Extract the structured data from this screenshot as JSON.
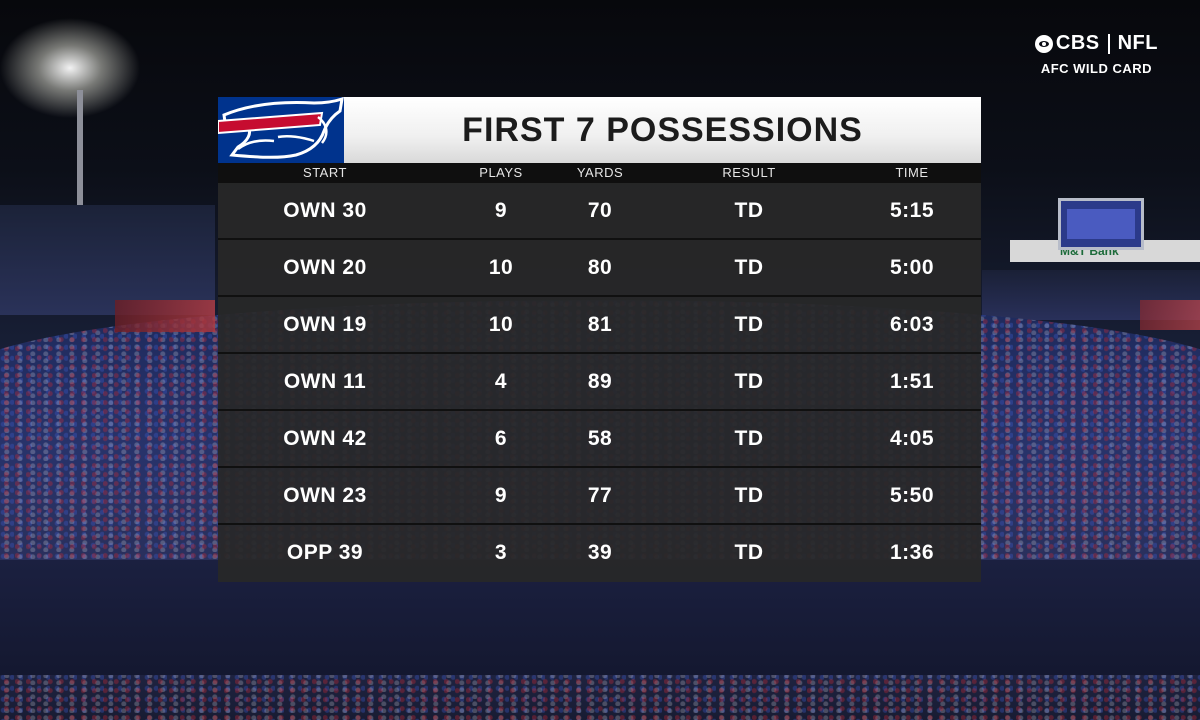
{
  "broadcast": {
    "network": "CBS",
    "league": "NFL",
    "game": "AFC WILD CARD"
  },
  "banner": {
    "sponsor": "M&T Bank"
  },
  "graphic": {
    "title": "FIRST 7 POSSESSIONS",
    "team_logo": "buffalo-bills-logo",
    "colors": {
      "team_blue": "#00338d",
      "team_red": "#c60c30"
    },
    "columns": {
      "start": "START",
      "plays": "PLAYS",
      "yards": "YARDS",
      "result": "RESULT",
      "time": "TIME"
    },
    "rows": [
      {
        "start": "OWN 30",
        "plays": "9",
        "yards": "70",
        "result": "TD",
        "time": "5:15"
      },
      {
        "start": "OWN 20",
        "plays": "10",
        "yards": "80",
        "result": "TD",
        "time": "5:00"
      },
      {
        "start": "OWN 19",
        "plays": "10",
        "yards": "81",
        "result": "TD",
        "time": "6:03"
      },
      {
        "start": "OWN 11",
        "plays": "4",
        "yards": "89",
        "result": "TD",
        "time": "1:51"
      },
      {
        "start": "OWN 42",
        "plays": "6",
        "yards": "58",
        "result": "TD",
        "time": "4:05"
      },
      {
        "start": "OWN 23",
        "plays": "9",
        "yards": "77",
        "result": "TD",
        "time": "5:50"
      },
      {
        "start": "OPP 39",
        "plays": "3",
        "yards": "39",
        "result": "TD",
        "time": "1:36"
      }
    ]
  }
}
